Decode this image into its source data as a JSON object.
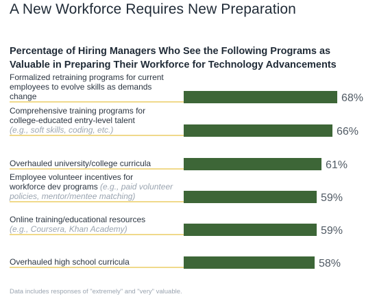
{
  "title": "A New Workforce Requires New Preparation",
  "chart_data": {
    "type": "bar",
    "orientation": "horizontal",
    "title": "Percentage of Hiring Managers Who See the Following Programs as Valuable in Preparing Their Workforce for Technology Advancements",
    "categories": [
      "Formalized retraining programs for current employees to evolve skills as demands change",
      "Comprehensive training programs for college-educated entry-level talent (e.g., soft skills, coding, etc.)",
      "Overhauled university/college curricula",
      "Employee volunteer incentives for workforce dev programs (e.g., paid volunteer policies, mentor/mentee matching)",
      "Online training/educational resources (e.g., Coursera, Khan Academy)",
      "Overhauled high school curricula"
    ],
    "values": [
      68,
      66,
      61,
      59,
      59,
      58
    ],
    "value_labels": [
      "68%",
      "66%",
      "61%",
      "59%",
      "59%",
      "58%"
    ],
    "xlim": [
      0,
      100
    ],
    "bar_color": "#3d6637",
    "underline_color": "#f0d98a",
    "grid": false,
    "legend": "none"
  },
  "labels": [
    {
      "main": "Formalized retraining programs for current employees to evolve skills as demands change"
    },
    {
      "main": "Comprehensive training programs for college-educated entry-level talent",
      "note": "(e.g., soft skills, coding, etc.)"
    },
    {
      "main": "Overhauled university/college curricula"
    },
    {
      "main": "Employee volunteer incentives for workforce dev programs",
      "note": "(e.g., paid volunteer policies, mentor/mentee matching)"
    },
    {
      "main": "Online training/educational resources",
      "note": "(e.g., Coursera, Khan Academy)"
    },
    {
      "main": "Overhauled high school curricula"
    }
  ],
  "footnote": "Data includes responses of \"extremely\" and \"very\" valuable."
}
